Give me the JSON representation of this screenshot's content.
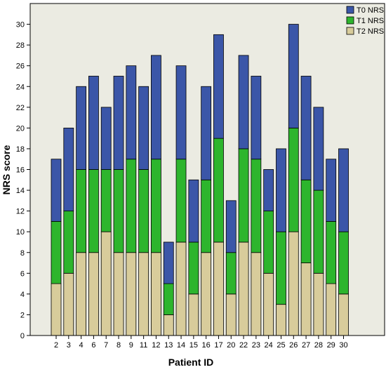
{
  "chart_data": {
    "type": "bar",
    "stacked": true,
    "title": "",
    "xlabel": "Patient ID",
    "ylabel": "NRS score",
    "ylim": [
      0,
      32
    ],
    "yticks": [
      0,
      2,
      4,
      6,
      8,
      10,
      12,
      14,
      16,
      18,
      20,
      22,
      24,
      26,
      28,
      30
    ],
    "grid": false,
    "legend_position": "top-right",
    "background_color": "#ebebe2",
    "categories": [
      "2",
      "3",
      "4",
      "6",
      "7",
      "8",
      "9",
      "11",
      "12",
      "13",
      "14",
      "15",
      "16",
      "17",
      "20",
      "22",
      "23",
      "24",
      "25",
      "26",
      "27",
      "28",
      "29",
      "30"
    ],
    "series": [
      {
        "name": "T2 NRS",
        "color": "#d8cc9b",
        "values": [
          5,
          6,
          8,
          8,
          10,
          8,
          8,
          8,
          8,
          2,
          9,
          4,
          8,
          9,
          4,
          9,
          8,
          6,
          3,
          10,
          7,
          6,
          5,
          4
        ]
      },
      {
        "name": "T1 NRS",
        "color": "#2db52d",
        "values": [
          6,
          6,
          8,
          8,
          6,
          8,
          9,
          8,
          9,
          3,
          8,
          5,
          7,
          10,
          4,
          9,
          9,
          6,
          7,
          10,
          8,
          8,
          6,
          6
        ]
      },
      {
        "name": "T0 NRS",
        "color": "#3b56a8",
        "values": [
          6,
          8,
          8,
          9,
          6,
          9,
          9,
          8,
          10,
          4,
          9,
          6,
          9,
          10,
          5,
          9,
          8,
          4,
          8,
          10,
          10,
          8,
          6,
          8
        ]
      }
    ],
    "legend_order": [
      "T0 NRS",
      "T1 NRS",
      "T2 NRS"
    ]
  }
}
